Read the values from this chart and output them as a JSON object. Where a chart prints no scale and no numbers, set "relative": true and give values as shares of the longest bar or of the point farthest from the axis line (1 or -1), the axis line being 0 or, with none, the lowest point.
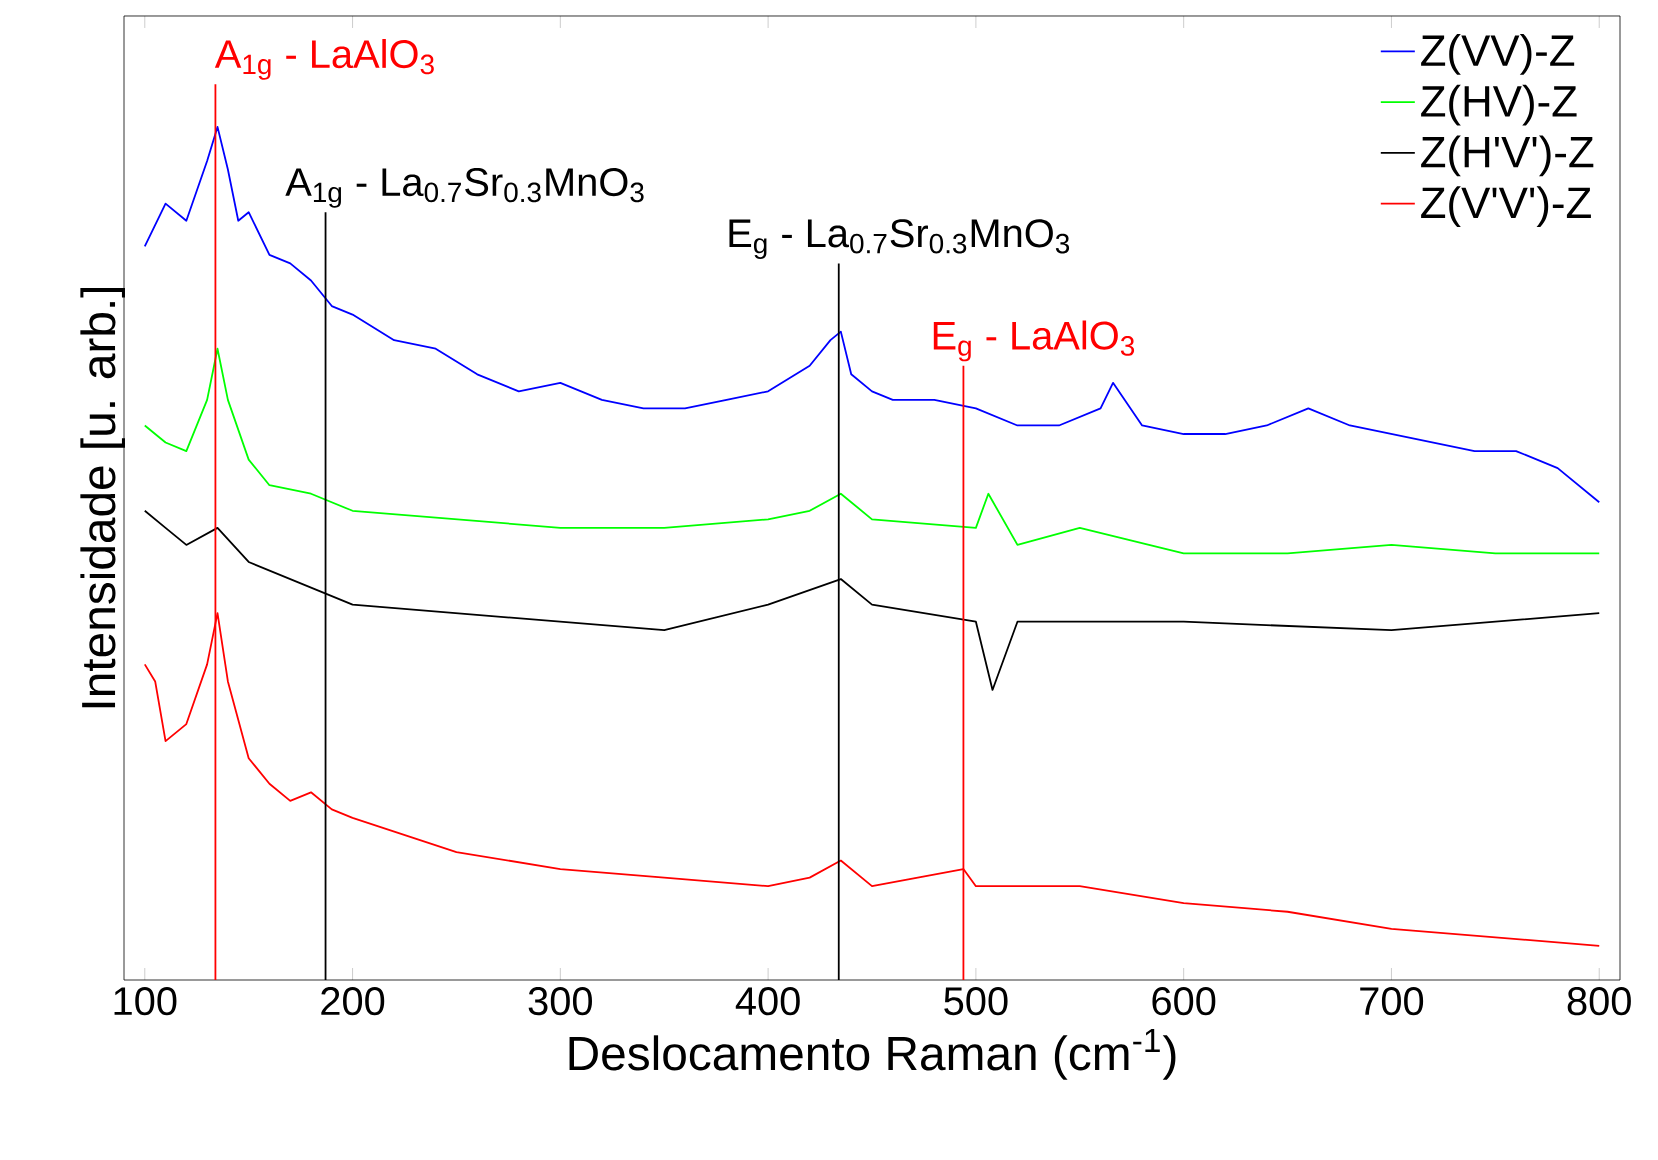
{
  "chart_data": {
    "type": "line",
    "relative": true,
    "xlabel": "Deslocamento Raman (cm$^{-1}$)",
    "ylabel": "Intensidade [u. arb.]",
    "xlim": [
      90,
      810
    ],
    "xticks": [
      100,
      200,
      300,
      400,
      500,
      600,
      700,
      800
    ],
    "legend": "top right",
    "series": [
      {
        "name": "Z(VV)-Z",
        "color": "#0000ff",
        "x": [
          100,
          110,
          120,
          130,
          135,
          140,
          145,
          150,
          160,
          170,
          180,
          190,
          200,
          220,
          240,
          260,
          280,
          300,
          320,
          340,
          360,
          380,
          400,
          420,
          430,
          435,
          440,
          450,
          460,
          480,
          500,
          520,
          540,
          560,
          566,
          580,
          600,
          620,
          640,
          660,
          680,
          700,
          720,
          740,
          760,
          780,
          800
        ],
        "values": [
          0.86,
          0.91,
          0.89,
          0.96,
          1.0,
          0.95,
          0.89,
          0.9,
          0.85,
          0.84,
          0.82,
          0.79,
          0.78,
          0.75,
          0.74,
          0.71,
          0.69,
          0.7,
          0.68,
          0.67,
          0.67,
          0.68,
          0.69,
          0.72,
          0.75,
          0.76,
          0.71,
          0.69,
          0.68,
          0.68,
          0.67,
          0.65,
          0.65,
          0.67,
          0.7,
          0.65,
          0.64,
          0.64,
          0.65,
          0.67,
          0.65,
          0.64,
          0.63,
          0.62,
          0.62,
          0.6,
          0.56
        ]
      },
      {
        "name": "Z(HV)-Z",
        "color": "#00ff00",
        "x": [
          100,
          110,
          120,
          130,
          135,
          140,
          150,
          160,
          180,
          200,
          250,
          300,
          350,
          400,
          420,
          435,
          450,
          500,
          506,
          520,
          550,
          600,
          650,
          700,
          750,
          800
        ],
        "values": [
          0.65,
          0.63,
          0.62,
          0.68,
          0.74,
          0.68,
          0.61,
          0.58,
          0.57,
          0.55,
          0.54,
          0.53,
          0.53,
          0.54,
          0.55,
          0.57,
          0.54,
          0.53,
          0.57,
          0.51,
          0.53,
          0.5,
          0.5,
          0.51,
          0.5,
          0.5
        ]
      },
      {
        "name": "Z(H'V')-Z",
        "color": "#000000",
        "x": [
          100,
          110,
          120,
          135,
          150,
          200,
          250,
          300,
          350,
          400,
          435,
          450,
          500,
          508,
          520,
          600,
          700,
          800
        ],
        "values": [
          0.55,
          0.53,
          0.51,
          0.53,
          0.49,
          0.44,
          0.43,
          0.42,
          0.41,
          0.44,
          0.47,
          0.44,
          0.42,
          0.34,
          0.42,
          0.42,
          0.41,
          0.43
        ]
      },
      {
        "name": "Z(V'V')-Z",
        "color": "#ff0000",
        "x": [
          100,
          105,
          110,
          120,
          130,
          135,
          140,
          150,
          160,
          170,
          180,
          190,
          200,
          250,
          300,
          350,
          400,
          420,
          435,
          450,
          494,
          500,
          550,
          600,
          650,
          700,
          750,
          800
        ],
        "values": [
          0.37,
          0.35,
          0.28,
          0.3,
          0.37,
          0.43,
          0.35,
          0.26,
          0.23,
          0.21,
          0.22,
          0.2,
          0.19,
          0.15,
          0.13,
          0.12,
          0.11,
          0.12,
          0.14,
          0.11,
          0.13,
          0.11,
          0.11,
          0.09,
          0.08,
          0.06,
          0.05,
          0.04
        ]
      }
    ],
    "ref_lines": [
      {
        "axis": "x",
        "value": 134,
        "label": "A$_{1g}$ - LaAlO$_{3}$",
        "color": "#ff0000"
      },
      {
        "axis": "x",
        "value": 187,
        "label": "A$_{1g}$ - La$_{0.7}$Sr$_{0.3}$MnO$_{3}$",
        "color": "#000000"
      },
      {
        "axis": "x",
        "value": 434,
        "label": "E$_{g}$ - La$_{0.7}$Sr$_{0.3}$MnO$_{3}$",
        "color": "#000000"
      },
      {
        "axis": "x",
        "value": 494,
        "label": "E$_{g}$ - LaAlO$_{3}$",
        "color": "#ff0000"
      }
    ]
  }
}
